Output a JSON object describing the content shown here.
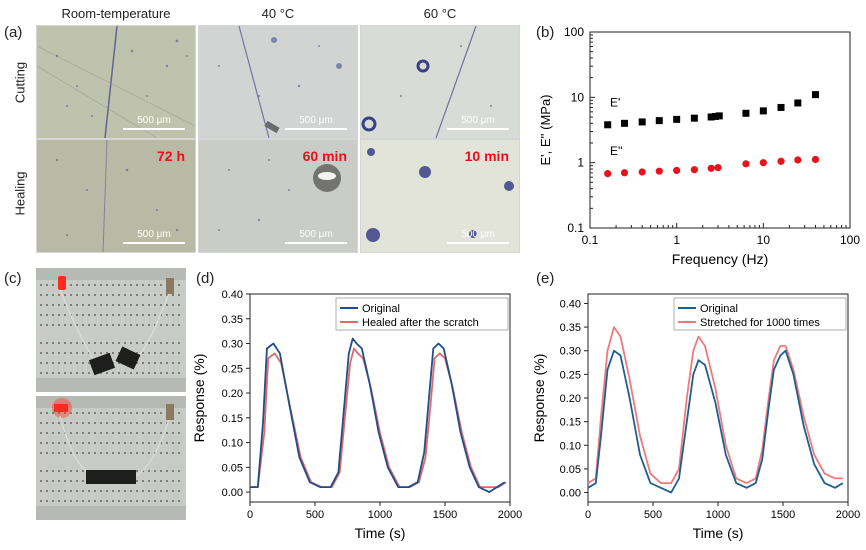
{
  "panel_labels": {
    "a": "(a)",
    "b": "(b)",
    "c": "(c)",
    "d": "(d)",
    "e": "(e)"
  },
  "panel_a": {
    "columns": [
      "Room-temperature",
      "40 °C",
      "60 °C"
    ],
    "rows": [
      "Cutting",
      "Healing"
    ],
    "scale_bar": "500 μm",
    "healing_times": [
      "72 h",
      "60 min",
      "10 min"
    ],
    "colors": {
      "bg_room": "#aeb19a",
      "bg_40": "#bfc3c0",
      "bg_60": "#d7dcd6",
      "ink": "#4b4f8f",
      "time_label": "#e8101a"
    }
  },
  "panel_c": {
    "colors": {
      "board": "#c9ccc6",
      "led": "#ff2a1f"
    }
  },
  "chart_data": [
    {
      "id": "b",
      "type": "scatter",
      "xscale": "log",
      "yscale": "log",
      "xlabel": "Frequency (Hz)",
      "ylabel": "E', E'' (MPa)",
      "xlim": [
        0.1,
        100
      ],
      "ylim": [
        0.1,
        100
      ],
      "xticks": [
        0.1,
        1,
        10,
        100
      ],
      "xtick_labels": [
        "0.1",
        "1",
        "10",
        "100"
      ],
      "yticks": [
        0.1,
        1,
        10,
        100
      ],
      "ytick_labels": [
        "0.1",
        "1",
        "10",
        "100"
      ],
      "series": [
        {
          "name": "E'",
          "marker": "square",
          "color": "#000000",
          "x": [
            0.16,
            0.25,
            0.4,
            0.63,
            1.0,
            1.6,
            2.5,
            2.8,
            3.1,
            6.3,
            10,
            16,
            25,
            40
          ],
          "y": [
            3.8,
            4.0,
            4.2,
            4.4,
            4.6,
            4.8,
            5.0,
            5.1,
            5.2,
            5.7,
            6.2,
            7.0,
            8.2,
            11.0
          ]
        },
        {
          "name": "E''",
          "marker": "circle",
          "color": "#e8121c",
          "x": [
            0.16,
            0.25,
            0.4,
            0.63,
            1.0,
            1.6,
            2.5,
            3.0,
            6.3,
            10,
            16,
            25,
            40
          ],
          "y": [
            0.68,
            0.7,
            0.72,
            0.74,
            0.76,
            0.78,
            0.82,
            0.84,
            0.96,
            1.0,
            1.05,
            1.1,
            1.12
          ]
        }
      ],
      "labels": [
        "E'",
        "E''"
      ]
    },
    {
      "id": "d",
      "type": "line",
      "xlabel": "Time (s)",
      "ylabel": "Response (%)",
      "xlim": [
        0,
        2000
      ],
      "ylim": [
        -0.02,
        0.4
      ],
      "xticks": [
        0,
        500,
        1000,
        1500,
        2000
      ],
      "xtick_labels": [
        "0",
        "500",
        "1000",
        "1500",
        "2000"
      ],
      "yticks": [
        0.0,
        0.05,
        0.1,
        0.15,
        0.2,
        0.25,
        0.3,
        0.35,
        0.4
      ],
      "ytick_labels": [
        "0.00",
        "0.05",
        "0.10",
        "0.15",
        "0.20",
        "0.25",
        "0.30",
        "0.35",
        "0.40"
      ],
      "legend_position": "top-right",
      "series": [
        {
          "name": "Original",
          "color": "#1f4e8c",
          "x": [
            0,
            60,
            100,
            130,
            180,
            230,
            300,
            380,
            460,
            540,
            620,
            680,
            720,
            760,
            790,
            820,
            860,
            920,
            990,
            1060,
            1140,
            1220,
            1290,
            1340,
            1380,
            1410,
            1450,
            1490,
            1550,
            1620,
            1690,
            1760,
            1840,
            1900,
            1960
          ],
          "y": [
            0.01,
            0.01,
            0.14,
            0.29,
            0.3,
            0.28,
            0.18,
            0.07,
            0.02,
            0.01,
            0.01,
            0.04,
            0.16,
            0.28,
            0.31,
            0.3,
            0.29,
            0.22,
            0.12,
            0.05,
            0.01,
            0.01,
            0.02,
            0.08,
            0.2,
            0.29,
            0.3,
            0.29,
            0.22,
            0.12,
            0.05,
            0.01,
            0.0,
            0.01,
            0.02
          ]
        },
        {
          "name": "Healed after the scratch",
          "color": "#e06a6a",
          "x": [
            0,
            60,
            110,
            140,
            190,
            240,
            310,
            390,
            470,
            550,
            630,
            690,
            730,
            770,
            800,
            830,
            870,
            930,
            1000,
            1070,
            1150,
            1230,
            1300,
            1350,
            1390,
            1420,
            1460,
            1500,
            1560,
            1630,
            1700,
            1770,
            1850,
            1910,
            1970
          ],
          "y": [
            0.01,
            0.01,
            0.12,
            0.27,
            0.28,
            0.26,
            0.17,
            0.07,
            0.02,
            0.01,
            0.01,
            0.04,
            0.15,
            0.26,
            0.29,
            0.28,
            0.27,
            0.21,
            0.12,
            0.05,
            0.01,
            0.01,
            0.02,
            0.07,
            0.18,
            0.27,
            0.28,
            0.27,
            0.21,
            0.12,
            0.05,
            0.01,
            0.01,
            0.01,
            0.02
          ]
        }
      ]
    },
    {
      "id": "e",
      "type": "line",
      "xlabel": "Time (s)",
      "ylabel": "Response (%)",
      "xlim": [
        0,
        2000
      ],
      "ylim": [
        -0.02,
        0.42
      ],
      "xticks": [
        0,
        500,
        1000,
        1500,
        2000
      ],
      "xtick_labels": [
        "0",
        "500",
        "1000",
        "1500",
        "2000"
      ],
      "yticks": [
        0.0,
        0.05,
        0.1,
        0.15,
        0.2,
        0.25,
        0.3,
        0.35,
        0.4
      ],
      "ytick_labels": [
        "0.00",
        "0.05",
        "0.10",
        "0.15",
        "0.20",
        "0.25",
        "0.30",
        "0.35",
        "0.40"
      ],
      "legend_position": "top-right",
      "series": [
        {
          "name": "Original",
          "color": "#1f5f8f",
          "x": [
            0,
            60,
            100,
            150,
            200,
            250,
            320,
            400,
            480,
            560,
            640,
            700,
            760,
            810,
            850,
            900,
            980,
            1060,
            1140,
            1220,
            1290,
            1340,
            1390,
            1430,
            1480,
            1520,
            1580,
            1660,
            1740,
            1820,
            1900,
            1960
          ],
          "y": [
            0.01,
            0.02,
            0.12,
            0.26,
            0.3,
            0.29,
            0.2,
            0.08,
            0.02,
            0.01,
            0.0,
            0.03,
            0.15,
            0.25,
            0.28,
            0.27,
            0.19,
            0.08,
            0.02,
            0.01,
            0.02,
            0.07,
            0.18,
            0.26,
            0.29,
            0.3,
            0.25,
            0.14,
            0.06,
            0.02,
            0.01,
            0.02
          ]
        },
        {
          "name": "Stretched for 1000 times",
          "color": "#ef7a7a",
          "x": [
            0,
            60,
            100,
            150,
            200,
            250,
            320,
            400,
            480,
            560,
            640,
            700,
            760,
            810,
            850,
            900,
            980,
            1060,
            1140,
            1220,
            1290,
            1340,
            1390,
            1430,
            1480,
            1520,
            1580,
            1660,
            1740,
            1820,
            1900,
            1960
          ],
          "y": [
            0.02,
            0.03,
            0.16,
            0.3,
            0.35,
            0.33,
            0.24,
            0.12,
            0.04,
            0.02,
            0.02,
            0.05,
            0.2,
            0.3,
            0.33,
            0.31,
            0.22,
            0.1,
            0.03,
            0.02,
            0.03,
            0.09,
            0.2,
            0.28,
            0.31,
            0.31,
            0.26,
            0.16,
            0.08,
            0.04,
            0.03,
            0.03
          ]
        }
      ]
    }
  ]
}
